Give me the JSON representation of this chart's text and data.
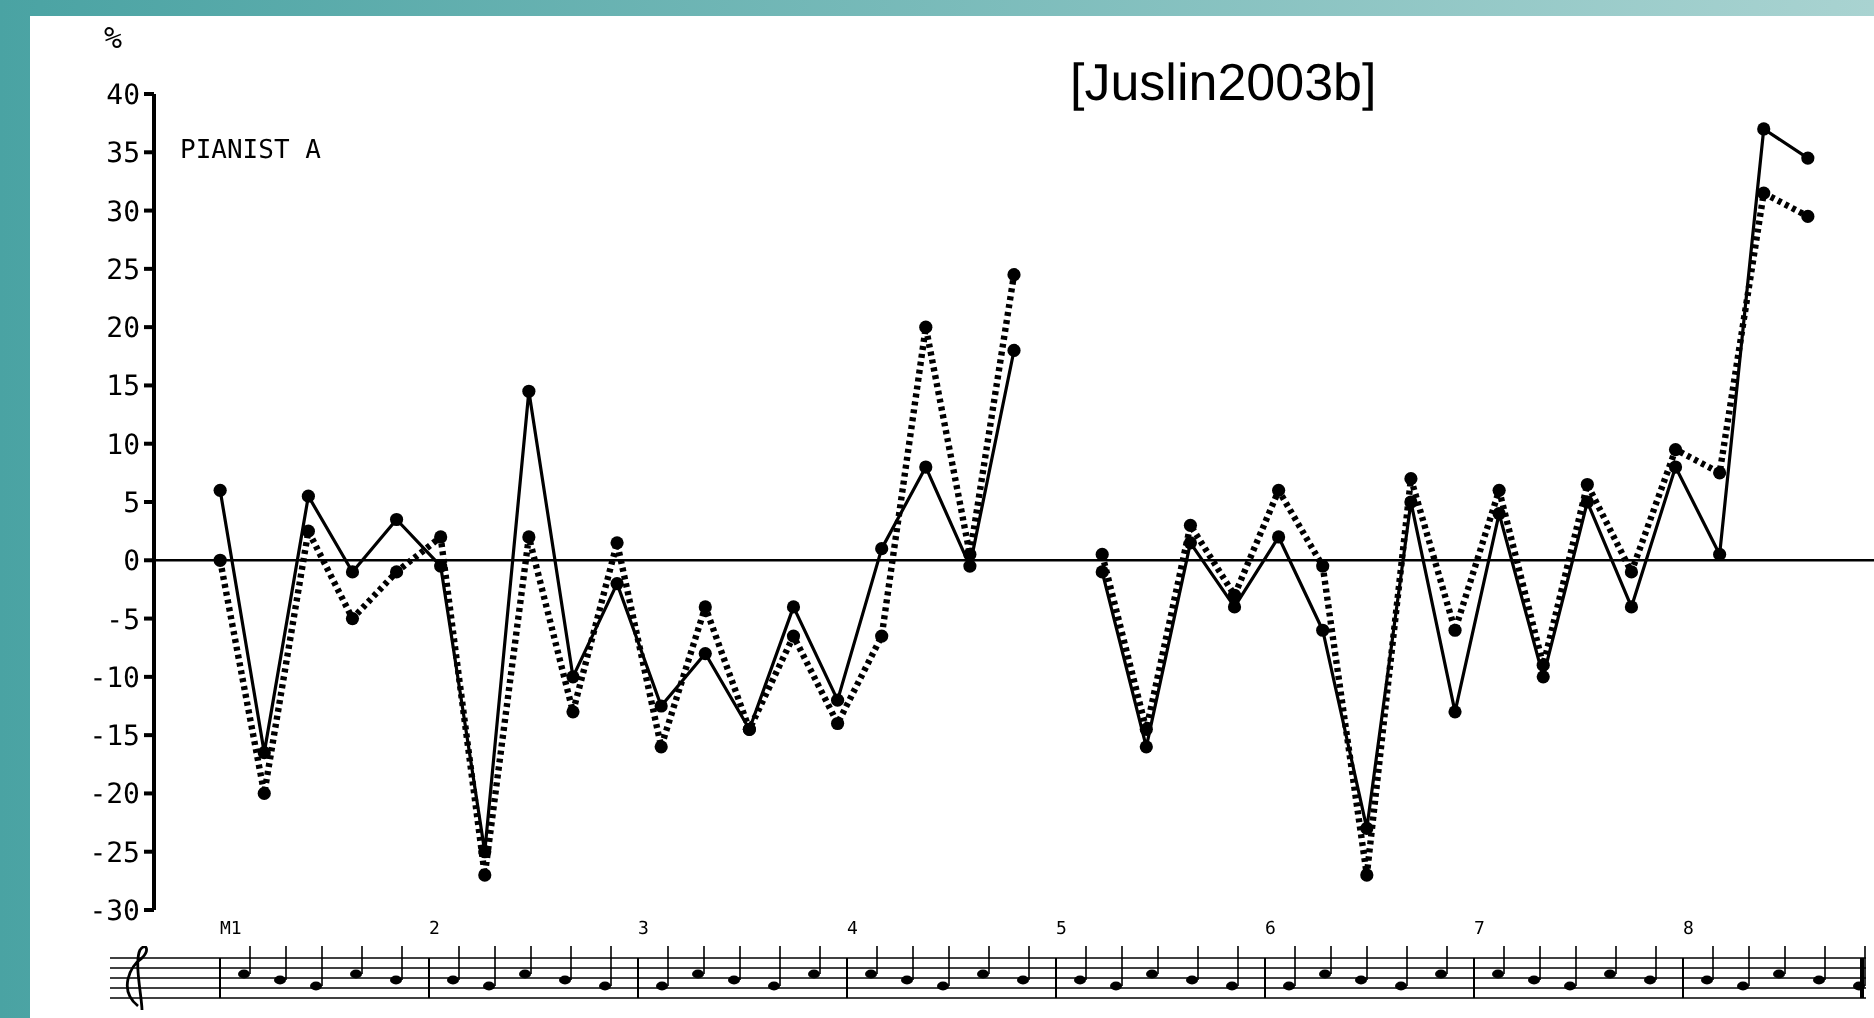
{
  "chart_data": {
    "type": "line",
    "ylabel": "%",
    "annotations": [
      "PIANIST A",
      "[Juslin2003b]",
      "M1",
      "2",
      "3",
      "4",
      "5",
      "6",
      "7",
      "8"
    ],
    "categories": [
      null,
      null,
      null,
      null,
      null,
      null,
      null,
      null,
      null,
      null,
      null,
      null,
      null,
      null,
      null,
      null,
      null,
      null,
      null,
      null,
      null,
      null,
      null,
      null,
      null,
      null,
      null,
      null,
      null,
      null,
      null,
      null,
      null,
      null,
      null,
      null,
      null,
      null,
      null
    ],
    "series": [
      {
        "color": "#000000",
        "line_style": "solid",
        "values": [
          null,
          6,
          -16.5,
          5.5,
          -1,
          3.5,
          -0.5,
          -25,
          14.5,
          -10,
          -2,
          -12.5,
          -8,
          -14.5,
          -4,
          -12,
          1,
          8,
          -0.5,
          18,
          null,
          -1,
          -16,
          1.5,
          -4,
          2,
          -6,
          -23,
          5,
          -13,
          4,
          -10,
          5,
          -4,
          8,
          0.5,
          37,
          34.5,
          null
        ]
      },
      {
        "color": "#000000",
        "line_style": "dotted",
        "values": [
          null,
          0,
          -20,
          2.5,
          -5,
          -1,
          2,
          -27,
          2,
          -13,
          1.5,
          -16,
          -4,
          -14.5,
          -6.5,
          -14,
          -6.5,
          20,
          0.5,
          24.5,
          null,
          0.5,
          -14.5,
          3,
          -3,
          6,
          -0.5,
          -27,
          7,
          -6,
          6,
          -9,
          6.5,
          -1,
          9.5,
          7.5,
          31.5,
          29.5,
          null
        ]
      }
    ],
    "ylim": [
      -30,
      40
    ],
    "yticks": [
      -30,
      -25,
      -20,
      -15,
      -10,
      -5,
      0,
      5,
      10,
      15,
      20,
      25,
      30,
      35,
      40
    ],
    "ref_lines": [
      {
        "axis": "y",
        "value": 0,
        "color": "#000000"
      }
    ],
    "marker": "circle",
    "grid": false,
    "legend": false,
    "tick_labels": "y"
  }
}
